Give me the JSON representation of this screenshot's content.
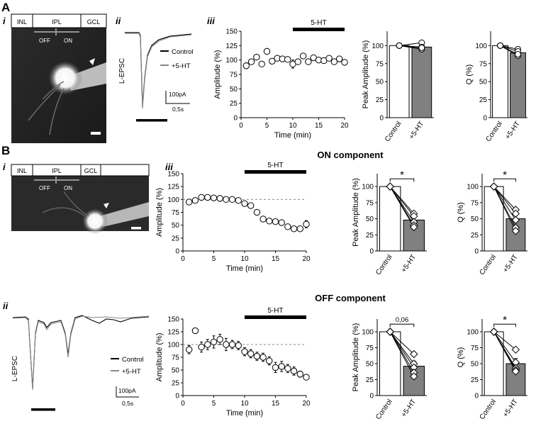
{
  "panel_labels": {
    "A": "A",
    "B": "B",
    "i": "i",
    "ii": "ii",
    "iii": "iii",
    "Bi": "i",
    "Biii": "iii",
    "Bii": "ii"
  },
  "layer_labels": {
    "inl": "INL",
    "ipl": "IPL",
    "gcl": "GCL",
    "off": "OFF",
    "on": "ON"
  },
  "scale_labels": {
    "current": "100pA",
    "time": "0,5s",
    "lepsc": "L-EPSC"
  },
  "legend": {
    "control": "Control",
    "ht": "+5-HT"
  },
  "section_titles": {
    "on": "ON component",
    "off": "OFF component"
  },
  "drug_label": "5-HT",
  "sig": {
    "star": "*",
    "p006": "0,06"
  },
  "colors": {
    "bar_control": "#ffffff",
    "bar_ht": "#808080",
    "trace_control": "#000000",
    "trace_ht": "#888888"
  },
  "chart_data": [
    {
      "id": "A_time",
      "type": "scatter",
      "title": "",
      "xlabel": "Time (min)",
      "ylabel": "Amplitude (%)",
      "xlim": [
        0,
        20
      ],
      "ylim": [
        0,
        150
      ],
      "xticks": [
        0,
        5,
        10,
        15,
        20
      ],
      "yticks": [
        0,
        25,
        50,
        75,
        100,
        125,
        150
      ],
      "x": [
        1,
        2,
        3,
        4,
        5,
        6,
        7,
        8,
        9,
        10,
        11,
        12,
        13,
        14,
        15,
        16,
        17,
        18,
        19,
        20
      ],
      "y": [
        90,
        97,
        105,
        93,
        115,
        98,
        103,
        102,
        101,
        93,
        97,
        107,
        97,
        104,
        100,
        99,
        103,
        97,
        102,
        96
      ],
      "err": [
        5,
        3,
        4,
        4,
        5,
        3,
        4,
        3,
        3,
        7,
        3,
        3,
        3,
        3,
        3,
        3,
        3,
        3,
        3,
        3
      ],
      "drug": [
        10,
        20
      ],
      "ref": null
    },
    {
      "id": "A_peak",
      "type": "bar",
      "ylabel": "Peak Amplitude (%)",
      "categories": [
        "Control",
        "+5-HT"
      ],
      "values": [
        100,
        98
      ],
      "err": [
        0,
        4
      ],
      "ylim": [
        0,
        120
      ],
      "yticks": [
        0,
        25,
        50,
        75,
        100
      ],
      "pairs": [
        [
          100,
          104
        ],
        [
          100,
          98
        ],
        [
          100,
          95
        ],
        [
          100,
          97
        ]
      ],
      "marker": "circle",
      "sig": ""
    },
    {
      "id": "A_q",
      "type": "bar",
      "ylabel": "Q (%)",
      "categories": [
        "Control",
        "+5-HT"
      ],
      "values": [
        100,
        90
      ],
      "err": [
        0,
        4
      ],
      "ylim": [
        0,
        120
      ],
      "yticks": [
        0,
        25,
        50,
        75,
        100
      ],
      "pairs": [
        [
          100,
          95
        ],
        [
          100,
          92
        ],
        [
          100,
          86
        ],
        [
          100,
          88
        ]
      ],
      "marker": "circle",
      "sig": ""
    },
    {
      "id": "B_on_time",
      "type": "scatter",
      "xlabel": "Time (min)",
      "ylabel": "Amplitude (%)",
      "xlim": [
        0,
        20
      ],
      "ylim": [
        0,
        150
      ],
      "xticks": [
        0,
        5,
        10,
        15,
        20
      ],
      "yticks": [
        0,
        25,
        50,
        75,
        100,
        125,
        150
      ],
      "x": [
        1,
        2,
        3,
        4,
        5,
        6,
        7,
        8,
        9,
        10,
        11,
        12,
        13,
        14,
        15,
        16,
        17,
        18,
        19,
        20
      ],
      "y": [
        95,
        98,
        104,
        104,
        103,
        102,
        100,
        100,
        98,
        92,
        88,
        75,
        62,
        58,
        57,
        55,
        47,
        43,
        43,
        52
      ],
      "err": [
        4,
        3,
        3,
        3,
        3,
        3,
        3,
        3,
        3,
        3,
        4,
        4,
        4,
        4,
        4,
        5,
        5,
        5,
        4,
        7
      ],
      "drug": [
        10,
        20
      ],
      "ref": 100
    },
    {
      "id": "B_on_peak",
      "type": "bar",
      "ylabel": "Peak Amplitude (%)",
      "categories": [
        "Control",
        "+5-HT"
      ],
      "values": [
        100,
        48
      ],
      "err": [
        0,
        6
      ],
      "ylim": [
        0,
        120
      ],
      "yticks": [
        0,
        25,
        50,
        75,
        100
      ],
      "pairs": [
        [
          100,
          58
        ],
        [
          100,
          54
        ],
        [
          100,
          45
        ],
        [
          100,
          40
        ],
        [
          100,
          37
        ]
      ],
      "marker": "diamond",
      "sig": "*"
    },
    {
      "id": "B_on_q",
      "type": "bar",
      "ylabel": "Q (%)",
      "categories": [
        "Control",
        "+5-HT"
      ],
      "values": [
        100,
        50
      ],
      "err": [
        0,
        7
      ],
      "ylim": [
        0,
        120
      ],
      "yticks": [
        0,
        25,
        50,
        75,
        100
      ],
      "pairs": [
        [
          100,
          64
        ],
        [
          100,
          58
        ],
        [
          100,
          48
        ],
        [
          100,
          36
        ],
        [
          100,
          31
        ]
      ],
      "marker": "diamond",
      "sig": "*"
    },
    {
      "id": "B_off_time",
      "type": "scatter",
      "xlabel": "Time (min)",
      "ylabel": "Amplitude (%)",
      "xlim": [
        0,
        20
      ],
      "ylim": [
        0,
        150
      ],
      "xticks": [
        0,
        5,
        10,
        15,
        20
      ],
      "yticks": [
        0,
        25,
        50,
        75,
        100,
        125,
        150
      ],
      "x": [
        1,
        2,
        3,
        4,
        5,
        6,
        7,
        8,
        9,
        10,
        11,
        12,
        13,
        14,
        15,
        16,
        17,
        18,
        19,
        20
      ],
      "y": [
        90,
        127,
        95,
        100,
        105,
        110,
        100,
        100,
        98,
        86,
        82,
        77,
        75,
        68,
        55,
        57,
        53,
        48,
        42,
        36
      ],
      "err": [
        8,
        5,
        10,
        10,
        12,
        10,
        12,
        8,
        8,
        8,
        8,
        8,
        8,
        8,
        10,
        10,
        8,
        8,
        6,
        5
      ],
      "drug": [
        10,
        20
      ],
      "ref": 100
    },
    {
      "id": "B_off_peak",
      "type": "bar",
      "ylabel": "Peak Amplitude (%)",
      "categories": [
        "Control",
        "+5-HT"
      ],
      "values": [
        100,
        46
      ],
      "err": [
        0,
        8
      ],
      "ylim": [
        0,
        120
      ],
      "yticks": [
        0,
        25,
        50,
        75,
        100
      ],
      "pairs": [
        [
          100,
          65
        ],
        [
          100,
          50
        ],
        [
          100,
          44
        ],
        [
          100,
          36
        ],
        [
          100,
          30
        ]
      ],
      "marker": "diamond",
      "sig": "0,06"
    },
    {
      "id": "B_off_q",
      "type": "bar",
      "ylabel": "Q (%)",
      "categories": [
        "Control",
        "+5-HT"
      ],
      "values": [
        100,
        50
      ],
      "err": [
        0,
        8
      ],
      "ylim": [
        0,
        120
      ],
      "yticks": [
        0,
        25,
        50,
        75,
        100
      ],
      "pairs": [
        [
          100,
          72
        ],
        [
          100,
          52
        ],
        [
          100,
          43
        ],
        [
          100,
          40
        ],
        [
          100,
          38
        ]
      ],
      "marker": "diamond",
      "sig": "*"
    }
  ]
}
